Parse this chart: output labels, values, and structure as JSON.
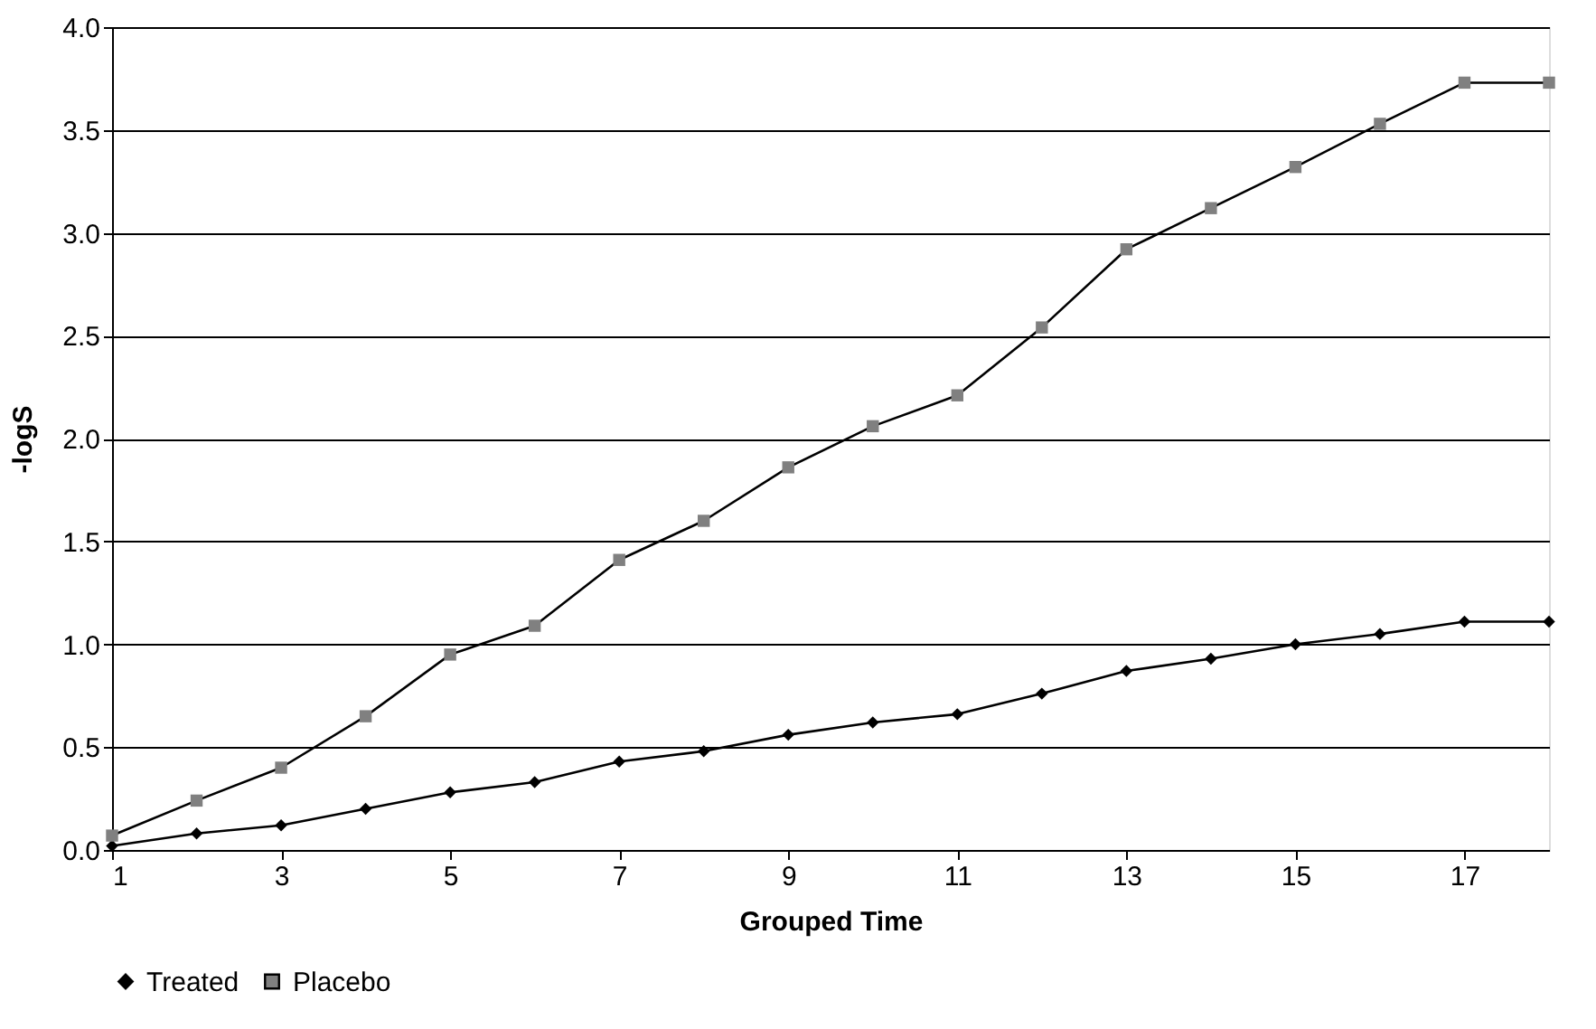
{
  "chart_data": {
    "type": "line",
    "xlabel": "Grouped Time",
    "ylabel": "-logS",
    "x": [
      1,
      2,
      3,
      4,
      5,
      6,
      7,
      8,
      9,
      10,
      11,
      12,
      13,
      14,
      15,
      16,
      17,
      18
    ],
    "series": [
      {
        "name": "Treated",
        "color": "#000000",
        "marker": "diamond",
        "values": [
          0.02,
          0.08,
          0.12,
          0.2,
          0.28,
          0.33,
          0.43,
          0.48,
          0.56,
          0.62,
          0.66,
          0.76,
          0.87,
          0.93,
          1.0,
          1.05,
          1.11,
          1.11
        ]
      },
      {
        "name": "Placebo",
        "color": "#808080",
        "marker": "square",
        "values": [
          0.07,
          0.24,
          0.4,
          0.65,
          0.95,
          1.09,
          1.41,
          1.6,
          1.86,
          2.06,
          2.21,
          2.54,
          2.92,
          3.12,
          3.32,
          3.53,
          3.73,
          3.73
        ]
      }
    ],
    "xlim": [
      1,
      18
    ],
    "xticks": [
      1,
      3,
      5,
      7,
      9,
      11,
      13,
      15,
      17
    ],
    "ylim": [
      0,
      4
    ],
    "yticks": [
      {
        "value": 0,
        "label": "0.0"
      },
      {
        "value": 0.5,
        "label": "0.5"
      },
      {
        "value": 1,
        "label": "1.0"
      },
      {
        "value": 1.5,
        "label": "1.5"
      },
      {
        "value": 2,
        "label": "2.0"
      },
      {
        "value": 2.5,
        "label": "2.5"
      },
      {
        "value": 3,
        "label": "3.0"
      },
      {
        "value": 3.5,
        "label": "3.5"
      },
      {
        "value": 4,
        "label": "4.0"
      }
    ],
    "grid": "y",
    "legend": "bottom left",
    "line_style": "solid"
  }
}
